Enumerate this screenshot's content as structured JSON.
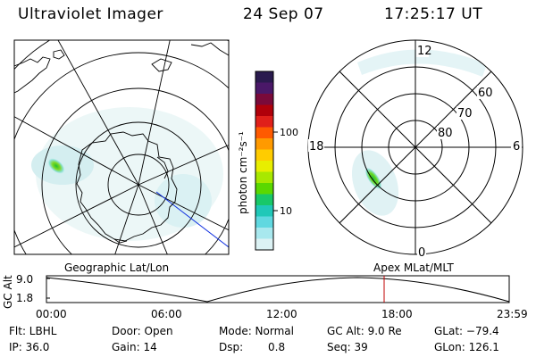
{
  "header": {
    "instrument": "Ultraviolet Imager",
    "date": "24 Sep 07",
    "time": "17:25:17 UT"
  },
  "colorbar": {
    "unit_label": "photon cm⁻²s⁻¹",
    "ticks": [
      "100",
      "10"
    ],
    "colors": [
      "#2a1a4e",
      "#4a1868",
      "#7a0a3a",
      "#b0000a",
      "#e0201a",
      "#ff5a00",
      "#ff9a00",
      "#ffcc00",
      "#e8ee00",
      "#a8e800",
      "#5ad800",
      "#18c868",
      "#20c8b8",
      "#60d8e0",
      "#a8e8ee",
      "#dcf2f4"
    ]
  },
  "geo_map": {
    "label": "Geographic Lat/Lon"
  },
  "mag_dial": {
    "label": "Apex MLat/MLT",
    "hours": {
      "top": "12",
      "left": "18",
      "right": "6",
      "bottom": "0"
    },
    "latitudes": [
      "60",
      "70",
      "80"
    ]
  },
  "altitude_plot": {
    "ylabel": "GC Alt",
    "y_ticks": [
      "9.0",
      "1.8"
    ],
    "x_ticks": [
      "00:00",
      "06:00",
      "12:00",
      "18:00",
      "23:59"
    ],
    "marker_time": "17:25"
  },
  "info": {
    "flt": "Flt: LBHL",
    "ip": "IP: 36.0",
    "door": "Door: Open",
    "gain": "Gain: 14",
    "mode": "Mode: Normal",
    "dsp_label": "Dsp:",
    "dsp_value": "0.8",
    "gc_alt": "GC Alt: 9.0 Re",
    "seq": "Seq: 39",
    "glat": "GLat: −79.4",
    "glon": "GLon: 126.1"
  }
}
